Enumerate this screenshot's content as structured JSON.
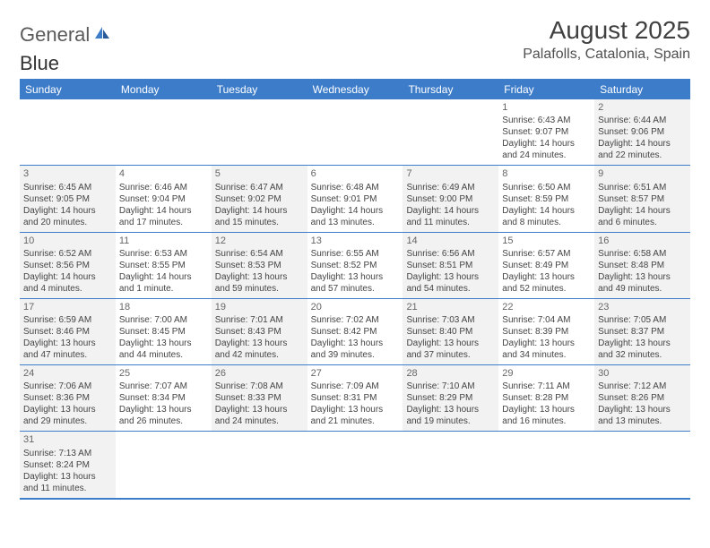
{
  "logo": {
    "text1": "General",
    "text2": "Blue"
  },
  "header": {
    "month_title": "August 2025",
    "location": "Palafolls, Catalonia, Spain"
  },
  "colors": {
    "header_bar": "#3d7cc9",
    "header_text": "#ffffff",
    "logo_gray": "#5a5a5a",
    "logo_blue": "#4a7bb5",
    "cell_alt": "#f2f2f2",
    "text": "#444444"
  },
  "weekdays": [
    "Sunday",
    "Monday",
    "Tuesday",
    "Wednesday",
    "Thursday",
    "Friday",
    "Saturday"
  ],
  "weeks": [
    [
      {
        "n": "",
        "lines": []
      },
      {
        "n": "",
        "lines": []
      },
      {
        "n": "",
        "lines": []
      },
      {
        "n": "",
        "lines": []
      },
      {
        "n": "",
        "lines": []
      },
      {
        "n": "1",
        "lines": [
          "Sunrise: 6:43 AM",
          "Sunset: 9:07 PM",
          "Daylight: 14 hours and 24 minutes."
        ]
      },
      {
        "n": "2",
        "lines": [
          "Sunrise: 6:44 AM",
          "Sunset: 9:06 PM",
          "Daylight: 14 hours and 22 minutes."
        ]
      }
    ],
    [
      {
        "n": "3",
        "lines": [
          "Sunrise: 6:45 AM",
          "Sunset: 9:05 PM",
          "Daylight: 14 hours and 20 minutes."
        ]
      },
      {
        "n": "4",
        "lines": [
          "Sunrise: 6:46 AM",
          "Sunset: 9:04 PM",
          "Daylight: 14 hours and 17 minutes."
        ]
      },
      {
        "n": "5",
        "lines": [
          "Sunrise: 6:47 AM",
          "Sunset: 9:02 PM",
          "Daylight: 14 hours and 15 minutes."
        ]
      },
      {
        "n": "6",
        "lines": [
          "Sunrise: 6:48 AM",
          "Sunset: 9:01 PM",
          "Daylight: 14 hours and 13 minutes."
        ]
      },
      {
        "n": "7",
        "lines": [
          "Sunrise: 6:49 AM",
          "Sunset: 9:00 PM",
          "Daylight: 14 hours and 11 minutes."
        ]
      },
      {
        "n": "8",
        "lines": [
          "Sunrise: 6:50 AM",
          "Sunset: 8:59 PM",
          "Daylight: 14 hours and 8 minutes."
        ]
      },
      {
        "n": "9",
        "lines": [
          "Sunrise: 6:51 AM",
          "Sunset: 8:57 PM",
          "Daylight: 14 hours and 6 minutes."
        ]
      }
    ],
    [
      {
        "n": "10",
        "lines": [
          "Sunrise: 6:52 AM",
          "Sunset: 8:56 PM",
          "Daylight: 14 hours and 4 minutes."
        ]
      },
      {
        "n": "11",
        "lines": [
          "Sunrise: 6:53 AM",
          "Sunset: 8:55 PM",
          "Daylight: 14 hours and 1 minute."
        ]
      },
      {
        "n": "12",
        "lines": [
          "Sunrise: 6:54 AM",
          "Sunset: 8:53 PM",
          "Daylight: 13 hours and 59 minutes."
        ]
      },
      {
        "n": "13",
        "lines": [
          "Sunrise: 6:55 AM",
          "Sunset: 8:52 PM",
          "Daylight: 13 hours and 57 minutes."
        ]
      },
      {
        "n": "14",
        "lines": [
          "Sunrise: 6:56 AM",
          "Sunset: 8:51 PM",
          "Daylight: 13 hours and 54 minutes."
        ]
      },
      {
        "n": "15",
        "lines": [
          "Sunrise: 6:57 AM",
          "Sunset: 8:49 PM",
          "Daylight: 13 hours and 52 minutes."
        ]
      },
      {
        "n": "16",
        "lines": [
          "Sunrise: 6:58 AM",
          "Sunset: 8:48 PM",
          "Daylight: 13 hours and 49 minutes."
        ]
      }
    ],
    [
      {
        "n": "17",
        "lines": [
          "Sunrise: 6:59 AM",
          "Sunset: 8:46 PM",
          "Daylight: 13 hours and 47 minutes."
        ]
      },
      {
        "n": "18",
        "lines": [
          "Sunrise: 7:00 AM",
          "Sunset: 8:45 PM",
          "Daylight: 13 hours and 44 minutes."
        ]
      },
      {
        "n": "19",
        "lines": [
          "Sunrise: 7:01 AM",
          "Sunset: 8:43 PM",
          "Daylight: 13 hours and 42 minutes."
        ]
      },
      {
        "n": "20",
        "lines": [
          "Sunrise: 7:02 AM",
          "Sunset: 8:42 PM",
          "Daylight: 13 hours and 39 minutes."
        ]
      },
      {
        "n": "21",
        "lines": [
          "Sunrise: 7:03 AM",
          "Sunset: 8:40 PM",
          "Daylight: 13 hours and 37 minutes."
        ]
      },
      {
        "n": "22",
        "lines": [
          "Sunrise: 7:04 AM",
          "Sunset: 8:39 PM",
          "Daylight: 13 hours and 34 minutes."
        ]
      },
      {
        "n": "23",
        "lines": [
          "Sunrise: 7:05 AM",
          "Sunset: 8:37 PM",
          "Daylight: 13 hours and 32 minutes."
        ]
      }
    ],
    [
      {
        "n": "24",
        "lines": [
          "Sunrise: 7:06 AM",
          "Sunset: 8:36 PM",
          "Daylight: 13 hours and 29 minutes."
        ]
      },
      {
        "n": "25",
        "lines": [
          "Sunrise: 7:07 AM",
          "Sunset: 8:34 PM",
          "Daylight: 13 hours and 26 minutes."
        ]
      },
      {
        "n": "26",
        "lines": [
          "Sunrise: 7:08 AM",
          "Sunset: 8:33 PM",
          "Daylight: 13 hours and 24 minutes."
        ]
      },
      {
        "n": "27",
        "lines": [
          "Sunrise: 7:09 AM",
          "Sunset: 8:31 PM",
          "Daylight: 13 hours and 21 minutes."
        ]
      },
      {
        "n": "28",
        "lines": [
          "Sunrise: 7:10 AM",
          "Sunset: 8:29 PM",
          "Daylight: 13 hours and 19 minutes."
        ]
      },
      {
        "n": "29",
        "lines": [
          "Sunrise: 7:11 AM",
          "Sunset: 8:28 PM",
          "Daylight: 13 hours and 16 minutes."
        ]
      },
      {
        "n": "30",
        "lines": [
          "Sunrise: 7:12 AM",
          "Sunset: 8:26 PM",
          "Daylight: 13 hours and 13 minutes."
        ]
      }
    ],
    [
      {
        "n": "31",
        "lines": [
          "Sunrise: 7:13 AM",
          "Sunset: 8:24 PM",
          "Daylight: 13 hours and 11 minutes."
        ]
      },
      {
        "n": "",
        "lines": []
      },
      {
        "n": "",
        "lines": []
      },
      {
        "n": "",
        "lines": []
      },
      {
        "n": "",
        "lines": []
      },
      {
        "n": "",
        "lines": []
      },
      {
        "n": "",
        "lines": []
      }
    ]
  ]
}
